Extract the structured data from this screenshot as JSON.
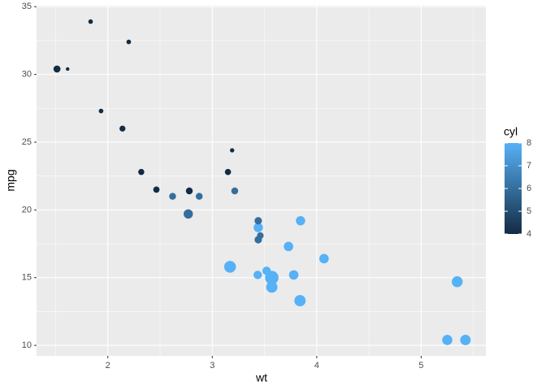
{
  "chart_data": {
    "type": "scatter",
    "x_label": "wt",
    "y_label": "mpg",
    "x": [
      2.62,
      2.875,
      2.32,
      3.215,
      3.44,
      3.46,
      3.57,
      3.19,
      3.15,
      3.44,
      3.44,
      4.07,
      3.73,
      3.78,
      5.25,
      5.424,
      5.345,
      2.2,
      1.615,
      1.835,
      2.465,
      3.52,
      3.435,
      3.84,
      3.845,
      1.935,
      2.14,
      1.513,
      3.17,
      2.77,
      3.57,
      2.78
    ],
    "values": [
      21.0,
      21.0,
      22.8,
      21.4,
      18.7,
      18.1,
      14.3,
      24.4,
      22.8,
      19.2,
      17.8,
      16.4,
      17.3,
      15.2,
      10.4,
      10.4,
      14.7,
      32.4,
      30.4,
      33.9,
      21.5,
      15.5,
      15.2,
      13.3,
      19.2,
      27.3,
      26.0,
      30.4,
      15.8,
      19.7,
      15.0,
      21.4
    ],
    "color_values": [
      6,
      6,
      4,
      6,
      8,
      6,
      8,
      4,
      4,
      6,
      6,
      8,
      8,
      8,
      8,
      8,
      8,
      4,
      4,
      4,
      4,
      8,
      8,
      8,
      8,
      4,
      4,
      4,
      8,
      6,
      8,
      4
    ],
    "sizes": [
      110,
      110,
      93,
      110,
      175,
      105,
      245,
      62,
      95,
      123,
      123,
      180,
      180,
      180,
      205,
      215,
      230,
      66,
      52,
      65,
      97,
      150,
      150,
      245,
      175,
      66,
      91,
      113,
      264,
      175,
      335,
      109
    ],
    "xlim": [
      1.3175,
      5.6196
    ],
    "ylim": [
      9.225,
      35.075
    ],
    "xticks": [
      2,
      3,
      4,
      5
    ],
    "yticks": [
      10,
      15,
      20,
      25,
      30,
      35
    ],
    "grid": true,
    "color_title": "cyl",
    "color_lim": [
      4,
      8
    ],
    "color_ticks": [
      4,
      5,
      6,
      7,
      8
    ],
    "color_low": "#132B43",
    "color_high": "#56B1F7"
  }
}
